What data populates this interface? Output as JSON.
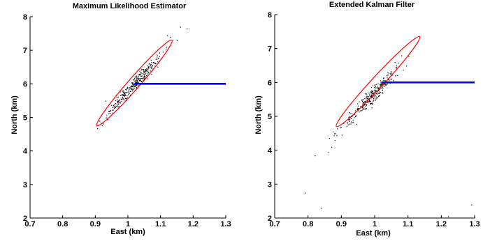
{
  "chart_data": [
    {
      "type": "scatter",
      "title": "Maximum Likelihood Estimator",
      "xlabel": "East (km)",
      "ylabel": "North (km)",
      "xlim": [
        0.7,
        1.3
      ],
      "ylim": [
        2,
        8
      ],
      "xticks": [
        "0.7",
        "0.8",
        "0.9",
        "1",
        "1.1",
        "1.2",
        "1.3"
      ],
      "yticks": [
        "2",
        "3",
        "4",
        "5",
        "6",
        "7",
        "8"
      ],
      "grid": false,
      "colors": {
        "points": "#000000",
        "ellipse": "#ff0000",
        "line": "#0000ff"
      },
      "line": {
        "x": [
          1.02,
          1.3
        ],
        "y": [
          6.0,
          6.0
        ]
      },
      "ellipse": {
        "end1": [
          1.135,
          7.3
        ],
        "end2": [
          0.905,
          4.75
        ],
        "halfwidth_km": 0.012
      },
      "cloud": {
        "center": [
          1.02,
          6.0
        ],
        "count": 330,
        "outliers": [
          [
            1.16,
            7.7
          ],
          [
            1.18,
            7.65
          ],
          [
            1.13,
            7.4
          ],
          [
            1.15,
            7.3
          ],
          [
            1.12,
            7.45
          ]
        ]
      }
    },
    {
      "type": "scatter",
      "title": "Extended Kalman Filter",
      "xlabel": "East (km)",
      "ylabel": "North (km)",
      "xlim": [
        0.7,
        1.3
      ],
      "ylim": [
        2,
        8
      ],
      "xticks": [
        "0.7",
        "0.8",
        "0.9",
        "1",
        "1.1",
        "1.2",
        "1.3"
      ],
      "yticks": [
        "2",
        "3",
        "4",
        "5",
        "6",
        "7",
        "8"
      ],
      "grid": false,
      "colors": {
        "points": "#000000",
        "ellipse": "#ff0000",
        "line": "#0000ff"
      },
      "line": {
        "x": [
          1.02,
          1.3
        ],
        "y": [
          6.0,
          6.0
        ]
      },
      "ellipse": {
        "end1": [
          1.135,
          7.35
        ],
        "end2": [
          0.885,
          4.7
        ],
        "halfwidth_km": 0.012
      },
      "cloud": {
        "center": [
          0.985,
          5.55
        ],
        "count": 300,
        "outliers": [
          [
            0.82,
            3.85
          ],
          [
            0.79,
            2.75
          ],
          [
            0.87,
            4.1
          ],
          [
            0.86,
            3.95
          ],
          [
            0.84,
            2.3
          ],
          [
            0.88,
            4.3
          ],
          [
            1.29,
            2.4
          ],
          [
            1.22,
            2.05
          ],
          [
            1.06,
            6.6
          ],
          [
            1.08,
            6.8
          ]
        ]
      }
    }
  ]
}
